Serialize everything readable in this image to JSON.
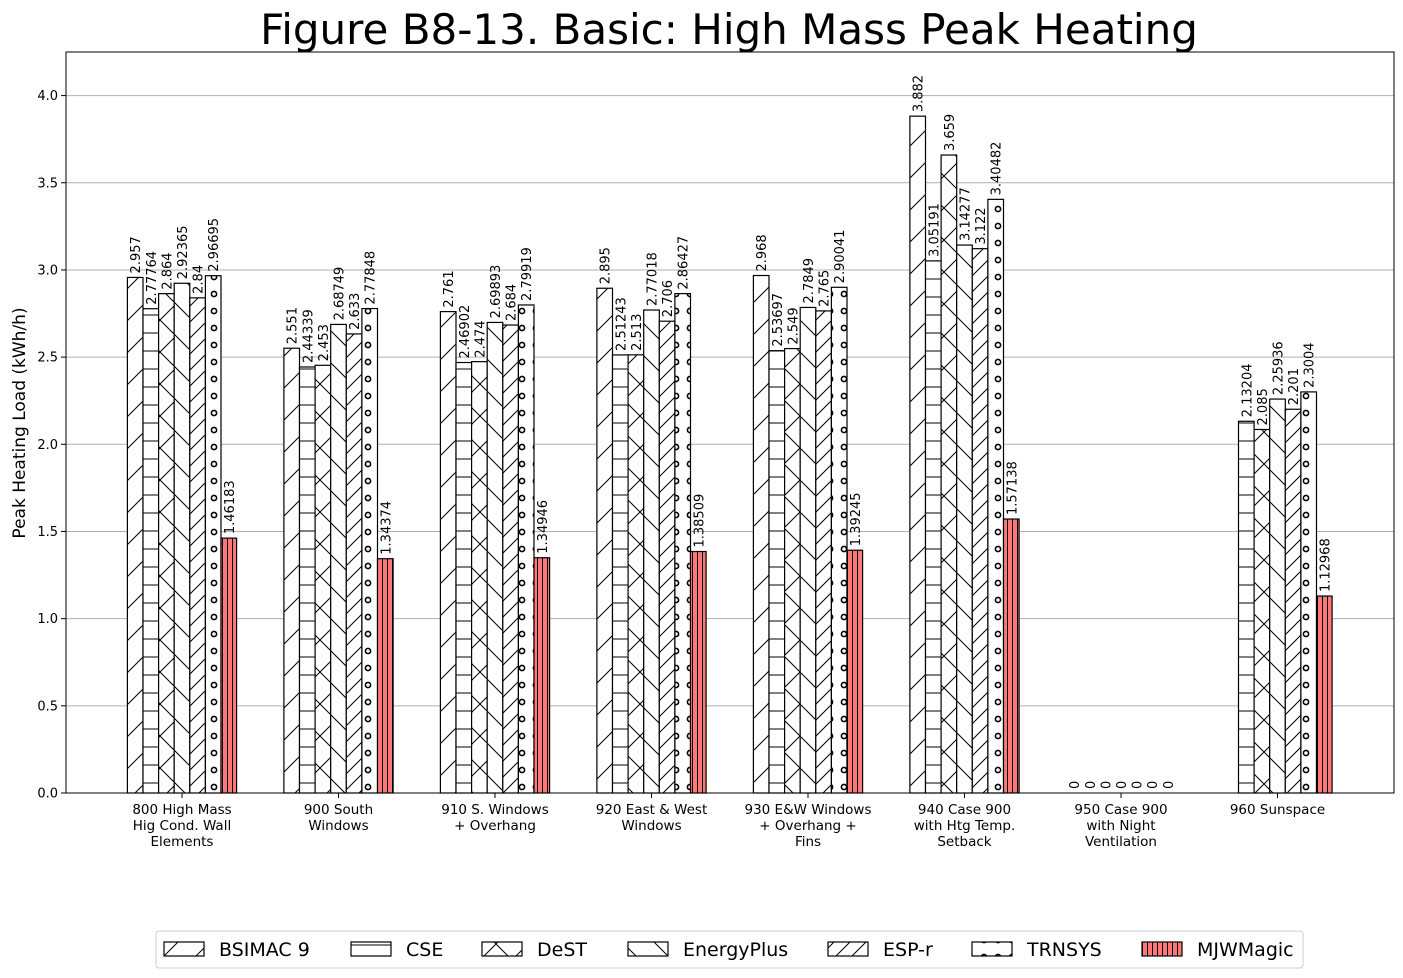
{
  "chart_data": {
    "type": "bar",
    "title": "Figure B8-13.  Basic: High Mass Peak Heating",
    "xlabel": "",
    "ylabel": "Peak Heating Load (kWh/h)",
    "ylim": [
      0,
      4.25
    ],
    "yticks": [
      "0.0",
      "0.5",
      "1.0",
      "1.5",
      "2.0",
      "2.5",
      "3.0",
      "3.5",
      "4.0"
    ],
    "grid": "y",
    "legend_position": "bottom",
    "categories": [
      [
        "800 High Mass",
        "Hig Cond. Wall",
        "Elements"
      ],
      [
        "900 South",
        "Windows"
      ],
      [
        "910 S. Windows",
        "+ Overhang"
      ],
      [
        "920 East & West",
        "Windows"
      ],
      [
        "930 E&W Windows",
        "+ Overhang +",
        "Fins"
      ],
      [
        "940 Case 900",
        "with Htg Temp.",
        "Setback"
      ],
      [
        "950 Case 900",
        "with Night",
        "Ventilation"
      ],
      [
        "960 Sunspace"
      ]
    ],
    "series": [
      {
        "name": "BSIMAC 9",
        "pattern": "slash",
        "color": "#ffffff",
        "values": [
          2.957,
          2.551,
          2.761,
          2.895,
          2.968,
          3.882,
          0,
          null
        ],
        "labels": [
          "2.957",
          "2.551",
          "2.761",
          "2.895",
          "2.968",
          "3.882",
          "0",
          ""
        ]
      },
      {
        "name": "CSE",
        "pattern": "hline",
        "color": "#ffffff",
        "values": [
          2.77764,
          2.44339,
          2.46902,
          2.51243,
          2.53697,
          3.05191,
          0,
          2.13204
        ],
        "labels": [
          "2.77764",
          "2.44339",
          "2.46902",
          "2.51243",
          "2.53697",
          "3.05191",
          "0",
          "2.13204"
        ]
      },
      {
        "name": "DeST",
        "pattern": "cross",
        "color": "#ffffff",
        "values": [
          2.864,
          2.453,
          2.474,
          2.513,
          2.549,
          3.659,
          0,
          2.085
        ],
        "labels": [
          "2.864",
          "2.453",
          "2.474",
          "2.513",
          "2.549",
          "3.659",
          "0",
          "2.085"
        ]
      },
      {
        "name": "EnergyPlus",
        "pattern": "backslash",
        "color": "#ffffff",
        "values": [
          2.92365,
          2.68749,
          2.69893,
          2.77018,
          2.7849,
          3.14277,
          0,
          2.25936
        ],
        "labels": [
          "2.92365",
          "2.68749",
          "2.69893",
          "2.77018",
          "2.7849",
          "3.14277",
          "0",
          "2.25936"
        ]
      },
      {
        "name": "ESP-r",
        "pattern": "dslash",
        "color": "#ffffff",
        "values": [
          2.84,
          2.633,
          2.684,
          2.706,
          2.765,
          3.122,
          0,
          2.201
        ],
        "labels": [
          "2.84",
          "2.633",
          "2.684",
          "2.706",
          "2.765",
          "3.122",
          "0",
          "2.201"
        ]
      },
      {
        "name": "TRNSYS",
        "pattern": "circles",
        "color": "#ffffff",
        "values": [
          2.96695,
          2.77848,
          2.79919,
          2.86427,
          2.90041,
          3.40482,
          0,
          2.3004
        ],
        "labels": [
          "2.96695",
          "2.77848",
          "2.79919",
          "2.86427",
          "2.90041",
          "3.40482",
          "0",
          "2.3004"
        ]
      },
      {
        "name": "MJWMagic",
        "pattern": "vline",
        "color": "#ff7777",
        "values": [
          1.46183,
          1.34374,
          1.34946,
          1.38509,
          1.39245,
          1.57138,
          0,
          1.12968
        ],
        "labels": [
          "1.46183",
          "1.34374",
          "1.34946",
          "1.38509",
          "1.39245",
          "1.57138",
          "0",
          "1.12968"
        ]
      }
    ]
  }
}
